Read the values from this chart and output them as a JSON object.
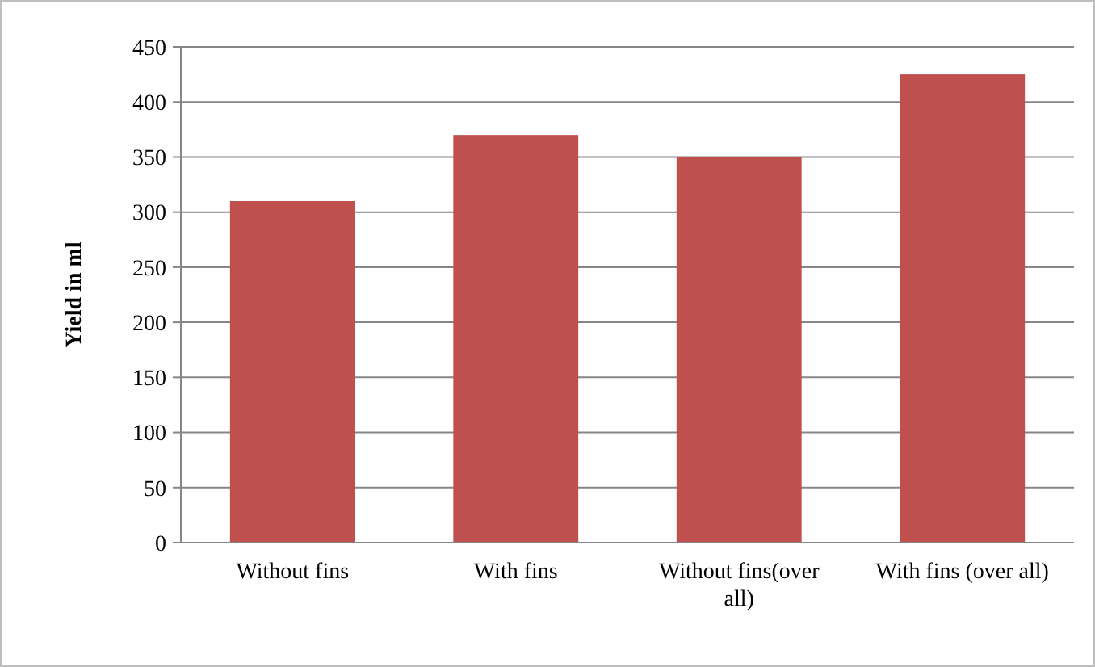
{
  "chart_data": {
    "type": "bar",
    "ylabel": "Yield in ml",
    "categories": [
      "Without fins",
      "With fins",
      "Without fins(over all)",
      "With fins (over all)"
    ],
    "values": [
      310,
      370,
      350,
      425
    ],
    "color": "#c0504d",
    "ylim": [
      0,
      450
    ],
    "yticks": [
      0,
      50,
      100,
      150,
      200,
      250,
      300,
      350,
      400,
      450
    ],
    "grid": "y"
  }
}
